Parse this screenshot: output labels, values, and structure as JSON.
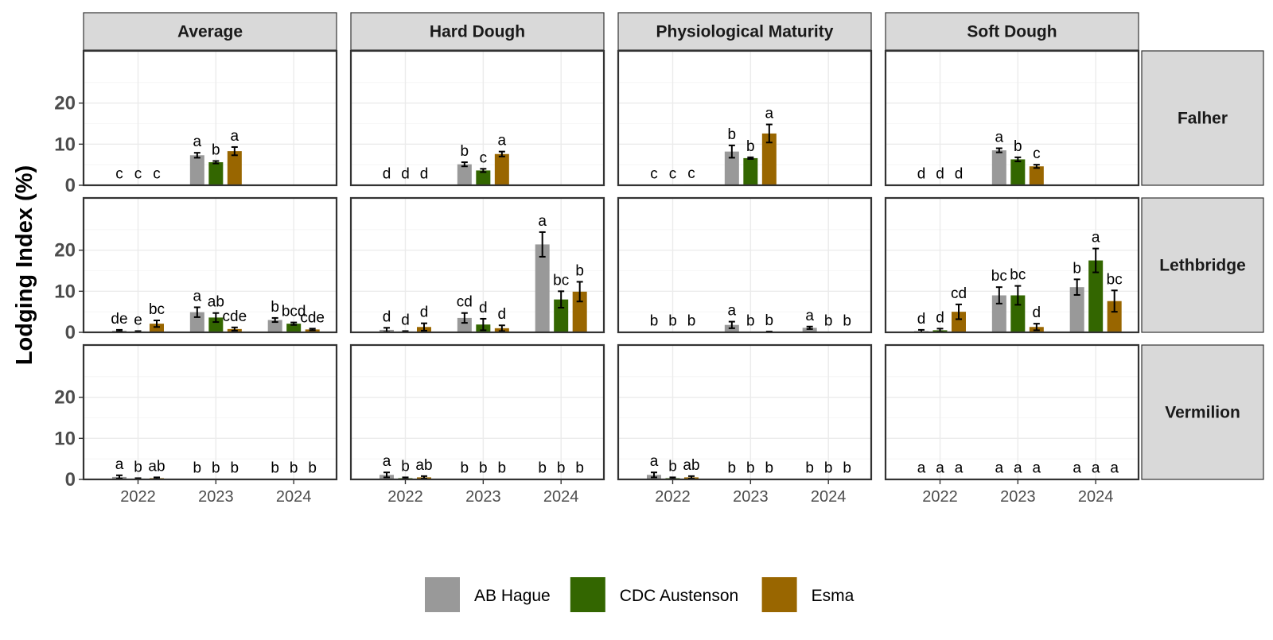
{
  "chart_data": {
    "type": "bar",
    "ylabel": "Lodging Index (%)",
    "xlabel": "",
    "ylim": [
      0,
      30
    ],
    "yticks": [
      0,
      10,
      20
    ],
    "columns": [
      "Average",
      "Hard Dough",
      "Physiological Maturity",
      "Soft Dough"
    ],
    "rows": [
      "Falher",
      "Lethbridge",
      "Vermilion"
    ],
    "categories": [
      "2022",
      "2023",
      "2024"
    ],
    "legend": {
      "position": "bottom",
      "items": [
        {
          "name": "AB Hague",
          "color": "#999999"
        },
        {
          "name": "CDC Austenson",
          "color": "#336600"
        },
        {
          "name": "Esma",
          "color": "#996600"
        }
      ]
    },
    "panels": [
      {
        "row": "Falher",
        "col": "Average",
        "values": [
          [
            0.1,
            0.1,
            0.1
          ],
          [
            7.3,
            5.6,
            8.3
          ],
          [
            null,
            null,
            null
          ]
        ],
        "errors": [
          [
            0,
            0,
            0
          ],
          [
            0.6,
            0.3,
            1.0
          ],
          [
            null,
            null,
            null
          ]
        ],
        "labels": [
          [
            "c",
            "c",
            "c"
          ],
          [
            "a",
            "b",
            "a"
          ],
          [
            "",
            "",
            ""
          ]
        ]
      },
      {
        "row": "Falher",
        "col": "Hard Dough",
        "values": [
          [
            0.1,
            0.1,
            0.1
          ],
          [
            5.1,
            3.6,
            7.6
          ],
          [
            null,
            null,
            null
          ]
        ],
        "errors": [
          [
            0,
            0,
            0
          ],
          [
            0.5,
            0.4,
            0.6
          ],
          [
            null,
            null,
            null
          ]
        ],
        "labels": [
          [
            "d",
            "d",
            "d"
          ],
          [
            "b",
            "c",
            "a"
          ],
          [
            "",
            "",
            ""
          ]
        ]
      },
      {
        "row": "Falher",
        "col": "Physiological Maturity",
        "values": [
          [
            0.1,
            0.1,
            0.2
          ],
          [
            8.2,
            6.6,
            12.6
          ],
          [
            null,
            null,
            null
          ]
        ],
        "errors": [
          [
            0,
            0,
            0
          ],
          [
            1.5,
            0.2,
            2.2
          ],
          [
            null,
            null,
            null
          ]
        ],
        "labels": [
          [
            "c",
            "c",
            "c"
          ],
          [
            "b",
            "b",
            "a"
          ],
          [
            "",
            "",
            ""
          ]
        ]
      },
      {
        "row": "Falher",
        "col": "Soft Dough",
        "values": [
          [
            0.1,
            0.1,
            0.1
          ],
          [
            8.5,
            6.3,
            4.6
          ],
          [
            null,
            null,
            null
          ]
        ],
        "errors": [
          [
            0,
            0,
            0
          ],
          [
            0.5,
            0.5,
            0.4
          ],
          [
            null,
            null,
            null
          ]
        ],
        "labels": [
          [
            "d",
            "d",
            "d"
          ],
          [
            "a",
            "b",
            "c"
          ],
          [
            "",
            "",
            ""
          ]
        ]
      },
      {
        "row": "Lethbridge",
        "col": "Average",
        "values": [
          [
            0.4,
            0.2,
            2.1
          ],
          [
            4.9,
            3.6,
            0.8
          ],
          [
            3.0,
            2.1,
            0.7
          ]
        ],
        "errors": [
          [
            0.2,
            0.1,
            0.8
          ],
          [
            1.2,
            1.1,
            0.4
          ],
          [
            0.5,
            0.3,
            0.2
          ]
        ],
        "labels": [
          [
            "de",
            "e",
            "bc"
          ],
          [
            "a",
            "ab",
            "cde"
          ],
          [
            "b",
            "bcd",
            "cde"
          ]
        ]
      },
      {
        "row": "Lethbridge",
        "col": "Hard Dough",
        "values": [
          [
            0.6,
            0.2,
            1.3
          ],
          [
            3.5,
            1.9,
            1.0
          ],
          [
            21.4,
            8.0,
            9.9
          ]
        ],
        "errors": [
          [
            0.5,
            0.1,
            0.9
          ],
          [
            1.2,
            1.4,
            0.7
          ],
          [
            3.0,
            2.0,
            2.4
          ]
        ],
        "labels": [
          [
            "d",
            "d",
            "d"
          ],
          [
            "cd",
            "d",
            "d"
          ],
          [
            "a",
            "bc",
            "b"
          ]
        ]
      },
      {
        "row": "Lethbridge",
        "col": "Physiological Maturity",
        "values": [
          [
            0.1,
            0.1,
            0.1
          ],
          [
            1.8,
            0.1,
            0.1
          ],
          [
            1.1,
            0.1,
            0.1
          ]
        ],
        "errors": [
          [
            0,
            0,
            0
          ],
          [
            0.8,
            0,
            0.1
          ],
          [
            0.3,
            0,
            0
          ]
        ],
        "labels": [
          [
            "b",
            "b",
            "b"
          ],
          [
            "a",
            "b",
            "b"
          ],
          [
            "a",
            "b",
            "b"
          ]
        ]
      },
      {
        "row": "Lethbridge",
        "col": "Soft Dough",
        "values": [
          [
            0.3,
            0.5,
            5.0
          ],
          [
            9.0,
            9.0,
            1.3
          ],
          [
            11.0,
            17.5,
            7.6
          ]
        ],
        "errors": [
          [
            0.3,
            0.4,
            1.8
          ],
          [
            2.0,
            2.3,
            0.8
          ],
          [
            1.9,
            2.9,
            2.6
          ]
        ],
        "labels": [
          [
            "d",
            "d",
            "cd"
          ],
          [
            "bc",
            "bc",
            "d"
          ],
          [
            "b",
            "a",
            "bc"
          ]
        ]
      },
      {
        "row": "Vermilion",
        "col": "Average",
        "values": [
          [
            0.6,
            0.2,
            0.3
          ],
          [
            0.05,
            0.05,
            0.05
          ],
          [
            0.05,
            0.05,
            0.05
          ]
        ],
        "errors": [
          [
            0.4,
            0.1,
            0.2
          ],
          [
            0,
            0,
            0
          ],
          [
            0,
            0,
            0
          ]
        ],
        "labels": [
          [
            "a",
            "b",
            "ab"
          ],
          [
            "b",
            "b",
            "b"
          ],
          [
            "b",
            "b",
            "b"
          ]
        ]
      },
      {
        "row": "Vermilion",
        "col": "Hard Dough",
        "values": [
          [
            1.1,
            0.3,
            0.5
          ],
          [
            0.05,
            0.05,
            0.05
          ],
          [
            0.05,
            0.05,
            0.05
          ]
        ],
        "errors": [
          [
            0.6,
            0.2,
            0.3
          ],
          [
            0,
            0,
            0
          ],
          [
            0,
            0,
            0
          ]
        ],
        "labels": [
          [
            "a",
            "b",
            "ab"
          ],
          [
            "b",
            "b",
            "b"
          ],
          [
            "b",
            "b",
            "b"
          ]
        ]
      },
      {
        "row": "Vermilion",
        "col": "Physiological Maturity",
        "values": [
          [
            1.1,
            0.3,
            0.5
          ],
          [
            0.05,
            0.05,
            0.05
          ],
          [
            0.05,
            0.05,
            0.05
          ]
        ],
        "errors": [
          [
            0.6,
            0.2,
            0.3
          ],
          [
            0,
            0,
            0
          ],
          [
            0,
            0,
            0
          ]
        ],
        "labels": [
          [
            "a",
            "b",
            "ab"
          ],
          [
            "b",
            "b",
            "b"
          ],
          [
            "b",
            "b",
            "b"
          ]
        ]
      },
      {
        "row": "Vermilion",
        "col": "Soft Dough",
        "values": [
          [
            0.05,
            0.05,
            0.05
          ],
          [
            0.05,
            0.05,
            0.05
          ],
          [
            0.05,
            0.05,
            0.05
          ]
        ],
        "errors": [
          [
            0,
            0,
            0
          ],
          [
            0,
            0,
            0
          ],
          [
            0,
            0,
            0
          ]
        ],
        "labels": [
          [
            "a",
            "a",
            "a"
          ],
          [
            "a",
            "a",
            "a"
          ],
          [
            "a",
            "a",
            "a"
          ]
        ]
      }
    ]
  }
}
